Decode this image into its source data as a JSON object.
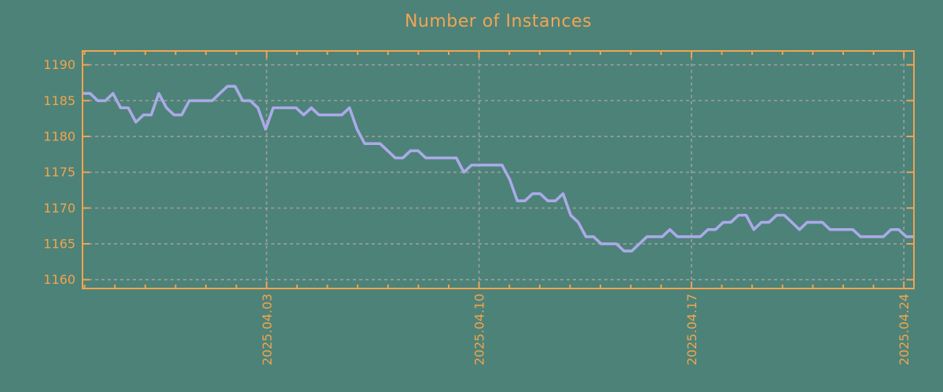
{
  "title": "Number of Instances",
  "colors": {
    "background": "#4D8278",
    "axis": "#F0A450",
    "line": "#AAAAE8",
    "grid": "#9BA09B",
    "title_text": "#F2A455"
  },
  "chart_data": {
    "type": "line",
    "title": "Number of Instances",
    "xlabel": "",
    "ylabel": "",
    "legend": "none",
    "grid": true,
    "ylim": [
      1158.8,
      1191.9
    ],
    "y_ticks": [
      1160,
      1165,
      1170,
      1175,
      1180,
      1185,
      1190
    ],
    "x_tick_labels": [
      "2025.04.03",
      "2025.04.10",
      "2025.04.17",
      "2025.04.24"
    ],
    "x_minor_tick_unit": "1 day",
    "sampling": "approx. 4 points per day, 2025.03.28 to 2025.04.24",
    "series": [
      {
        "name": "Number of Instances",
        "values": [
          1186,
          1186,
          1185,
          1185,
          1186,
          1184,
          1184,
          1182,
          1183,
          1183,
          1186,
          1184,
          1183,
          1183,
          1185,
          1185,
          1185,
          1185,
          1186,
          1187,
          1187,
          1185,
          1185,
          1184,
          1181,
          1184,
          1184,
          1184,
          1184,
          1183,
          1184,
          1183,
          1183,
          1183,
          1183,
          1184,
          1181,
          1179,
          1179,
          1179,
          1178,
          1177,
          1177,
          1178,
          1178,
          1177,
          1177,
          1177,
          1177,
          1177,
          1175,
          1176,
          1176,
          1176,
          1176,
          1176,
          1174,
          1171,
          1171,
          1172,
          1172,
          1171,
          1171,
          1172,
          1169,
          1168,
          1166,
          1166,
          1165,
          1165,
          1165,
          1164,
          1164,
          1165,
          1166,
          1166,
          1166,
          1167,
          1166,
          1166,
          1166,
          1166,
          1167,
          1167,
          1168,
          1168,
          1169,
          1169,
          1167,
          1168,
          1168,
          1169,
          1169,
          1168,
          1167,
          1168,
          1168,
          1168,
          1167,
          1167,
          1167,
          1167,
          1166,
          1166,
          1166,
          1166,
          1167,
          1167,
          1166,
          1166
        ]
      }
    ]
  }
}
